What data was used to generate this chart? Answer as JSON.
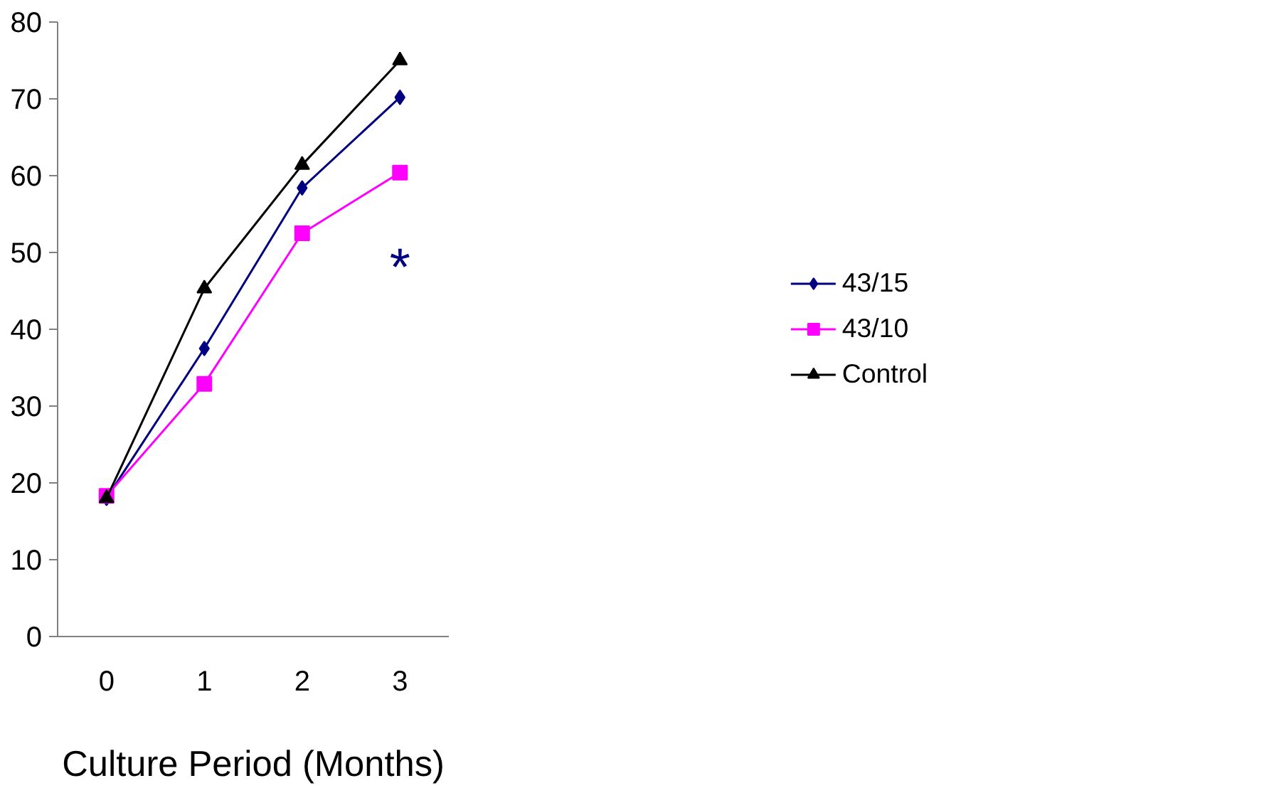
{
  "chart_data": {
    "type": "line",
    "xlabel": "Culture Period (Months)",
    "categories": [
      "0",
      "1",
      "2",
      "3"
    ],
    "series": [
      {
        "name": "43/15",
        "color": "#000080",
        "marker": "diamond",
        "values": [
          18,
          37.5,
          58.4,
          70.2
        ]
      },
      {
        "name": "43/10",
        "color": "#ff00ff",
        "marker": "square",
        "values": [
          18.3,
          32.9,
          52.5,
          60.4
        ]
      },
      {
        "name": "Control",
        "color": "#000000",
        "marker": "triangle",
        "values": [
          18,
          45.3,
          61.4,
          75
        ]
      }
    ],
    "ylim": [
      0,
      80
    ],
    "yticks": [
      0,
      10,
      20,
      30,
      40,
      50,
      60,
      70,
      80
    ],
    "grid": false,
    "legend": "right",
    "annotations": [
      "*"
    ]
  }
}
